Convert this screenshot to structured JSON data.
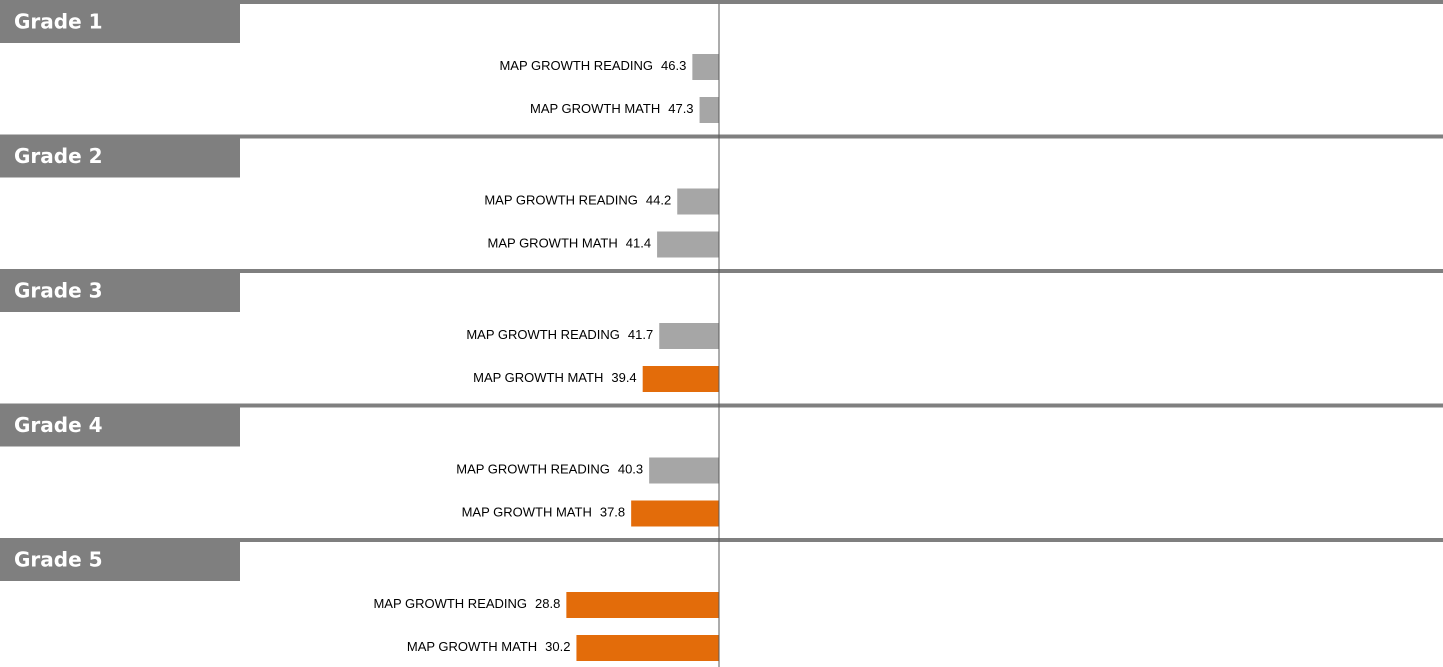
{
  "chart_data": {
    "type": "diverging-bar",
    "xlim": [
      0,
      100
    ],
    "reference": 50,
    "groups": [
      {
        "name": "Grade 1",
        "bars": [
          {
            "label": "MAP GROWTH READING",
            "value": 46.3,
            "color": "#a6a6a6"
          },
          {
            "label": "MAP GROWTH MATH",
            "value": 47.3,
            "color": "#a6a6a6"
          }
        ]
      },
      {
        "name": "Grade 2",
        "bars": [
          {
            "label": "MAP GROWTH READING",
            "value": 44.2,
            "color": "#a6a6a6"
          },
          {
            "label": "MAP GROWTH MATH",
            "value": 41.4,
            "color": "#a6a6a6"
          }
        ]
      },
      {
        "name": "Grade 3",
        "bars": [
          {
            "label": "MAP GROWTH READING",
            "value": 41.7,
            "color": "#a6a6a6"
          },
          {
            "label": "MAP GROWTH MATH",
            "value": 39.4,
            "color": "#e36c0a"
          }
        ]
      },
      {
        "name": "Grade 4",
        "bars": [
          {
            "label": "MAP GROWTH READING",
            "value": 40.3,
            "color": "#a6a6a6"
          },
          {
            "label": "MAP GROWTH MATH",
            "value": 37.8,
            "color": "#e36c0a"
          }
        ]
      },
      {
        "name": "Grade 5",
        "bars": [
          {
            "label": "MAP GROWTH READING",
            "value": 28.8,
            "color": "#e36c0a"
          },
          {
            "label": "MAP GROWTH MATH",
            "value": 30.2,
            "color": "#e36c0a"
          }
        ]
      }
    ]
  }
}
